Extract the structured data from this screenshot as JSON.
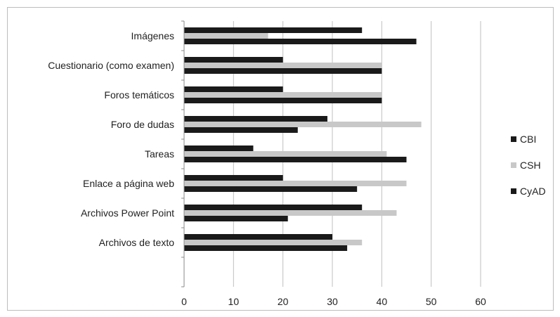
{
  "chart_data": {
    "type": "bar",
    "orientation": "horizontal",
    "categories": [
      "Imágenes",
      "Cuestionario (como examen)",
      "Foros temáticos",
      "Foro de dudas",
      "Tareas",
      "Enlace a página web",
      "Archivos Power Point",
      "Archivos de texto"
    ],
    "series": [
      {
        "name": "CBI",
        "color": "#1a1a1a",
        "values": [
          36,
          20,
          20,
          29,
          14,
          20,
          36,
          30
        ]
      },
      {
        "name": "CSH",
        "color": "#c8c8c8",
        "values": [
          17,
          40,
          40,
          48,
          41,
          45,
          43,
          36
        ]
      },
      {
        "name": "CyAD",
        "color": "#1a1a1a",
        "values": [
          47,
          40,
          40,
          23,
          45,
          35,
          21,
          33
        ]
      }
    ],
    "xlim": [
      0,
      60
    ],
    "xticks": [
      0,
      10,
      20,
      30,
      40,
      50,
      60
    ],
    "title": "",
    "xlabel": "",
    "ylabel": "",
    "grid": "vertical",
    "legend_position": "right"
  }
}
